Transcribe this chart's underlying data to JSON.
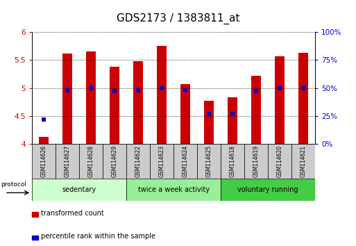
{
  "title": "GDS2173 / 1383811_at",
  "categories": [
    "GSM114626",
    "GSM114627",
    "GSM114628",
    "GSM114629",
    "GSM114622",
    "GSM114623",
    "GSM114624",
    "GSM114625",
    "GSM114618",
    "GSM114619",
    "GSM114620",
    "GSM114621"
  ],
  "red_values": [
    4.13,
    5.61,
    5.65,
    5.38,
    5.48,
    5.75,
    5.07,
    4.77,
    4.83,
    5.22,
    5.57,
    5.63
  ],
  "blue_values_pct": [
    22,
    48,
    50,
    47,
    48,
    50,
    48,
    27,
    27,
    47,
    50,
    50
  ],
  "ylim_left": [
    4.0,
    6.0
  ],
  "ylim_right": [
    0,
    100
  ],
  "yticks_left": [
    4.0,
    4.5,
    5.0,
    5.5,
    6.0
  ],
  "yticks_right": [
    0,
    25,
    50,
    75,
    100
  ],
  "yticklabels_left": [
    "4",
    "4.5",
    "5",
    "5.5",
    "6"
  ],
  "yticklabels_right": [
    "0%",
    "25%",
    "50%",
    "75%",
    "100%"
  ],
  "red_color": "#cc0000",
  "blue_color": "#0000cc",
  "bar_bottom": 4.0,
  "groups": [
    {
      "label": "sedentary",
      "indices": [
        0,
        1,
        2,
        3
      ],
      "color": "#ccffcc"
    },
    {
      "label": "twice a week activity",
      "indices": [
        4,
        5,
        6,
        7
      ],
      "color": "#99ee99"
    },
    {
      "label": "voluntary running",
      "indices": [
        8,
        9,
        10,
        11
      ],
      "color": "#44cc44"
    }
  ],
  "protocol_label": "protocol",
  "legend": [
    {
      "color": "#cc0000",
      "label": "transformed count"
    },
    {
      "color": "#0000cc",
      "label": "percentile rank within the sample"
    }
  ],
  "bar_width": 0.4,
  "title_fontsize": 11,
  "tick_fontsize": 7.5,
  "sample_box_color": "#cccccc",
  "spine_color": "#000000"
}
